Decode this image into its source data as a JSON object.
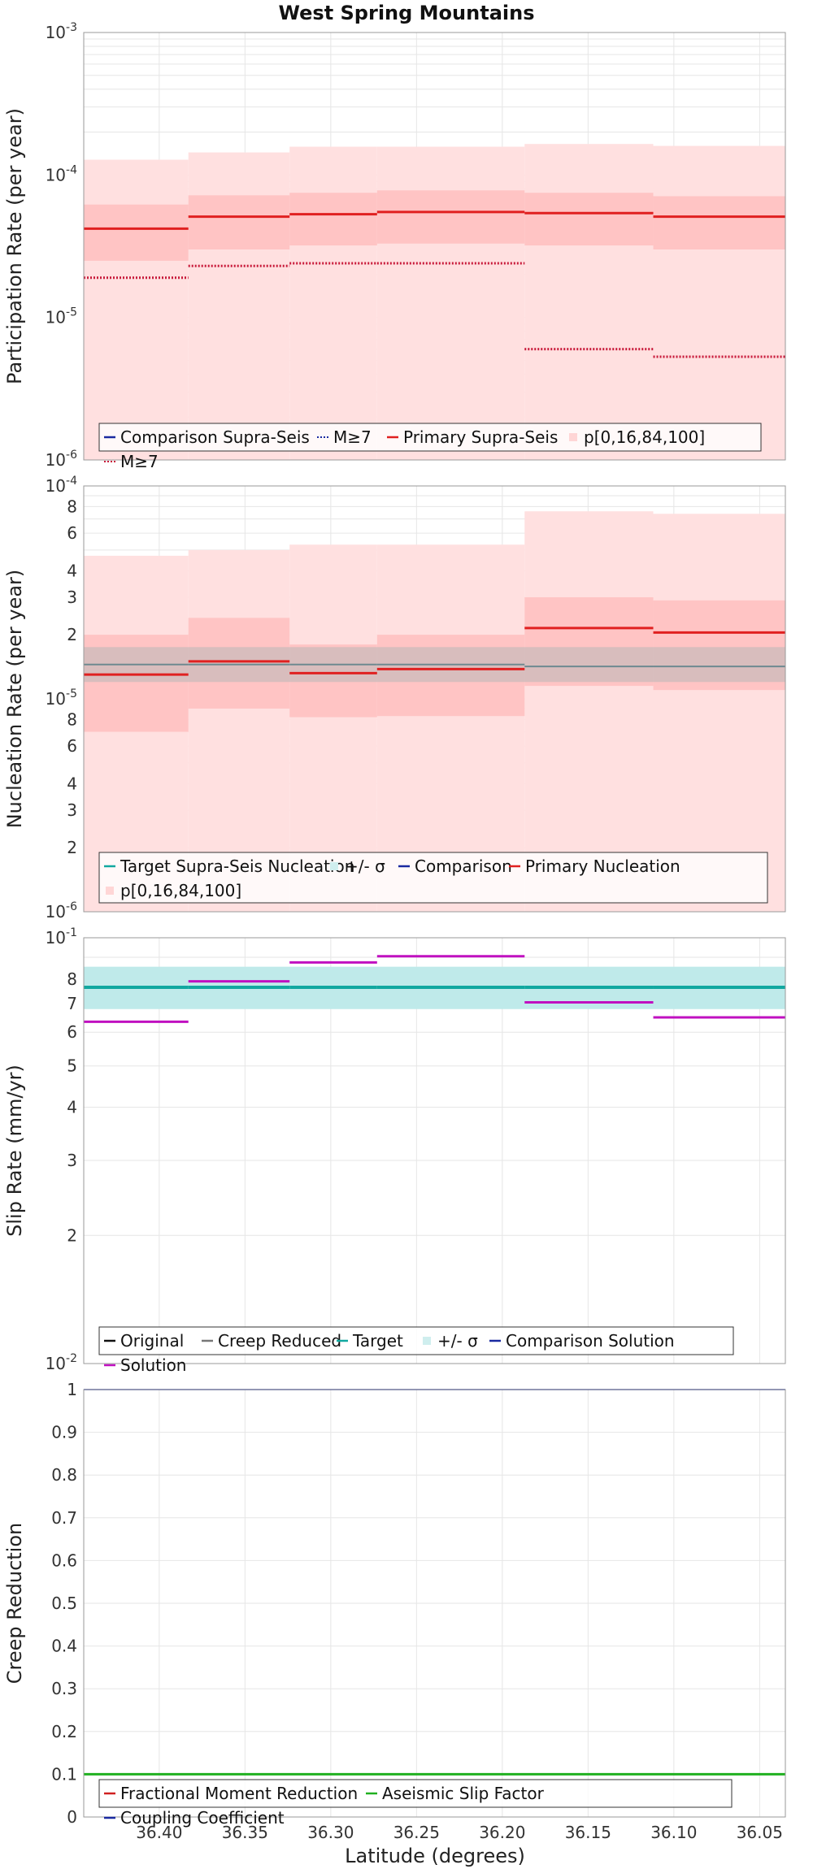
{
  "title": "West Spring Mountains",
  "xlabel": "Latitude (degrees)",
  "colors": {
    "frame": "#9a9a9a",
    "grid": "#e6e6e6",
    "band_outer": "#ffe0e0",
    "band_inner": "#ffc4c4",
    "primary": "#e02020",
    "dotted": "#c81a3a",
    "target": "#11a8a0",
    "target_band": "#bfeaea",
    "gray_band": "#b8b8b8",
    "gray_line": "#6e8a90",
    "solution": "#c010c0",
    "comparison": "#1a2aa0",
    "aseismic": "#20b020",
    "fractional": "#d02020"
  },
  "chart_data": [
    {
      "type": "line",
      "ylabel": "Participation Rate (per year)",
      "yscale": "log",
      "ylim": [
        1e-06,
        0.001
      ],
      "xlim": [
        36.444,
        36.035
      ],
      "x_ticks": [
        36.4,
        36.35,
        36.3,
        36.25,
        36.2,
        36.15,
        36.1,
        36.05
      ],
      "y_ticks": [
        {
          "base": "10",
          "exp": "-6",
          "value": 1e-06
        },
        {
          "base": "10",
          "exp": "-5",
          "value": 1e-05
        },
        {
          "base": "10",
          "exp": "-4",
          "value": 0.0001
        },
        {
          "base": "10",
          "exp": "-3",
          "value": 0.001
        }
      ],
      "x_bins": [
        [
          36.444,
          36.383
        ],
        [
          36.383,
          36.324
        ],
        [
          36.324,
          36.273
        ],
        [
          36.273,
          36.187
        ],
        [
          36.187,
          36.112
        ],
        [
          36.112,
          36.035
        ]
      ],
      "bands": [
        {
          "name": "p[0,16,84,100] outer",
          "lower": [
            1e-06,
            1e-06,
            1e-06,
            1e-06,
            1e-06,
            1e-06
          ],
          "upper": [
            0.000128,
            0.000144,
            0.000158,
            0.000158,
            0.000165,
            0.00016
          ]
        },
        {
          "name": "p[0,16,84,100] inner",
          "lower": [
            2.5e-05,
            3e-05,
            3.2e-05,
            3.3e-05,
            3.2e-05,
            3e-05
          ],
          "upper": [
            6.2e-05,
            7.2e-05,
            7.5e-05,
            7.8e-05,
            7.5e-05,
            7.1e-05
          ]
        }
      ],
      "series": [
        {
          "name": "Primary Supra-Seis",
          "values": [
            4.2e-05,
            5.1e-05,
            5.3e-05,
            5.5e-05,
            5.4e-05,
            5.1e-05
          ]
        },
        {
          "name": "M≥7",
          "values": [
            1.9e-05,
            2.3e-05,
            2.4e-05,
            2.4e-05,
            6e-06,
            5.3e-06
          ]
        }
      ],
      "legend": {
        "position": "bottom",
        "items": [
          {
            "label": "Comparison Supra-Seis",
            "style": "line",
            "color": "#1a2aa0"
          },
          {
            "label": "M≥7",
            "style": "dotted",
            "color": "#1a2aa0"
          },
          {
            "label": "Primary Supra-Seis",
            "style": "line",
            "color": "#e02020"
          },
          {
            "label": "p[0,16,84,100]",
            "style": "box",
            "color": "#ffd6d6"
          },
          {
            "label": "M≥7",
            "style": "dotted",
            "color": "#c81a3a"
          }
        ]
      }
    },
    {
      "type": "line",
      "ylabel": "Nucleation Rate (per year)",
      "yscale": "log",
      "ylim": [
        1e-06,
        0.0001
      ],
      "xlim": [
        36.444,
        36.035
      ],
      "y_ticks": [
        {
          "base": "10",
          "exp": "-6",
          "value": 1e-06
        },
        {
          "base": "2",
          "value": 2e-06
        },
        {
          "base": "3",
          "value": 3e-06
        },
        {
          "base": "4",
          "value": 4e-06
        },
        {
          "base": "6",
          "value": 6e-06
        },
        {
          "base": "8",
          "value": 8e-06
        },
        {
          "base": "10",
          "exp": "-5",
          "value": 1e-05
        },
        {
          "base": "2",
          "value": 2e-05
        },
        {
          "base": "3",
          "value": 3e-05
        },
        {
          "base": "4",
          "value": 4e-05
        },
        {
          "base": "6",
          "value": 6e-05
        },
        {
          "base": "8",
          "value": 8e-05
        },
        {
          "base": "10",
          "exp": "-4",
          "value": 0.0001
        }
      ],
      "x_bins": [
        [
          36.444,
          36.383
        ],
        [
          36.383,
          36.324
        ],
        [
          36.324,
          36.273
        ],
        [
          36.273,
          36.187
        ],
        [
          36.187,
          36.112
        ],
        [
          36.112,
          36.035
        ]
      ],
      "bands": [
        {
          "name": "p[0,16,84,100] outer",
          "lower": [
            1e-06,
            1e-06,
            1e-06,
            1e-06,
            1e-06,
            1e-06
          ],
          "upper": [
            4.7e-05,
            5e-05,
            5.3e-05,
            5.3e-05,
            7.6e-05,
            7.4e-05
          ]
        },
        {
          "name": "p[0,16,84,100] inner",
          "lower": [
            7e-06,
            9e-06,
            8.2e-06,
            8.3e-06,
            1.15e-05,
            1.1e-05
          ],
          "upper": [
            2e-05,
            2.4e-05,
            1.8e-05,
            2e-05,
            3e-05,
            2.9e-05
          ]
        }
      ],
      "target_band": {
        "lower": 1.2e-05,
        "upper": 1.75e-05
      },
      "target_value": 1.45e-05,
      "series": [
        {
          "name": "Primary Nucleation",
          "values": [
            1.3e-05,
            1.5e-05,
            1.32e-05,
            1.38e-05,
            2.15e-05,
            2.05e-05
          ]
        },
        {
          "name": "Target Supra-Seis Nucleation",
          "values": [
            1.45e-05,
            1.45e-05,
            1.45e-05,
            1.45e-05,
            1.42e-05,
            1.42e-05
          ]
        }
      ],
      "legend": {
        "position": "bottom",
        "items": [
          {
            "label": "Target Supra-Seis Nucleation",
            "style": "line",
            "color": "#11a8a0"
          },
          {
            "label": "+/- σ",
            "style": "box",
            "color": "#cfeeee"
          },
          {
            "label": "Comparison",
            "style": "line",
            "color": "#1a2aa0"
          },
          {
            "label": "Primary Nucleation",
            "style": "line",
            "color": "#e02020"
          },
          {
            "label": "p[0,16,84,100]",
            "style": "box",
            "color": "#ffd6d6"
          }
        ]
      }
    },
    {
      "type": "line",
      "ylabel": "Slip Rate (mm/yr)",
      "yscale": "log",
      "ylim": [
        0.01,
        0.1
      ],
      "xlim": [
        36.444,
        36.035
      ],
      "y_ticks": [
        {
          "base": "10",
          "exp": "-2",
          "value": 0.01
        },
        {
          "base": "2",
          "value": 0.02
        },
        {
          "base": "3",
          "value": 0.03
        },
        {
          "base": "4",
          "value": 0.04
        },
        {
          "base": "5",
          "value": 0.05
        },
        {
          "base": "6",
          "value": 0.06
        },
        {
          "base": "7",
          "value": 0.07
        },
        {
          "base": "8",
          "value": 0.08
        },
        {
          "base": "10",
          "exp": "-1",
          "value": 0.1
        }
      ],
      "x_bins": [
        [
          36.444,
          36.383
        ],
        [
          36.383,
          36.324
        ],
        [
          36.324,
          36.273
        ],
        [
          36.273,
          36.187
        ],
        [
          36.187,
          36.112
        ],
        [
          36.112,
          36.035
        ]
      ],
      "target_band": {
        "lower": 0.068,
        "upper": 0.0855
      },
      "target_value": 0.0765,
      "series": [
        {
          "name": "Solution",
          "values": [
            0.0635,
            0.079,
            0.0875,
            0.0905,
            0.0705,
            0.065
          ]
        },
        {
          "name": "Target",
          "values": [
            0.0765,
            0.0765,
            0.0765,
            0.0765,
            0.0765,
            0.0765
          ]
        }
      ],
      "legend": {
        "position": "bottom",
        "items": [
          {
            "label": "Original",
            "style": "line",
            "color": "#111111"
          },
          {
            "label": "Creep Reduced",
            "style": "line",
            "color": "#777777"
          },
          {
            "label": "Target",
            "style": "line",
            "color": "#11a8a0"
          },
          {
            "label": "+/- σ",
            "style": "box",
            "color": "#cfeeee"
          },
          {
            "label": "Comparison Solution",
            "style": "line",
            "color": "#1a2aa0"
          },
          {
            "label": "Solution",
            "style": "line",
            "color": "#c010c0"
          }
        ]
      }
    },
    {
      "type": "line",
      "ylabel": "Creep Reduction",
      "yscale": "linear",
      "ylim": [
        0,
        1
      ],
      "xlim": [
        36.444,
        36.035
      ],
      "x_ticks": [
        36.4,
        36.35,
        36.3,
        36.25,
        36.2,
        36.15,
        36.1,
        36.05
      ],
      "x_tick_labels": [
        "36.40",
        "36.35",
        "36.30",
        "36.25",
        "36.20",
        "36.15",
        "36.10",
        "36.05"
      ],
      "y_ticks": [
        {
          "base": "0",
          "value": 0
        },
        {
          "base": "0.1",
          "value": 0.1
        },
        {
          "base": "0.2",
          "value": 0.2
        },
        {
          "base": "0.3",
          "value": 0.3
        },
        {
          "base": "0.4",
          "value": 0.4
        },
        {
          "base": "0.5",
          "value": 0.5
        },
        {
          "base": "0.6",
          "value": 0.6
        },
        {
          "base": "0.7",
          "value": 0.7
        },
        {
          "base": "0.8",
          "value": 0.8
        },
        {
          "base": "0.9",
          "value": 0.9
        },
        {
          "base": "1",
          "value": 1
        }
      ],
      "series": [
        {
          "name": "Coupling Coefficient",
          "values": [
            1,
            1
          ]
        },
        {
          "name": "Aseismic Slip Factor",
          "values": [
            0.1,
            0.1
          ]
        }
      ],
      "legend": {
        "position": "bottom",
        "items": [
          {
            "label": "Fractional Moment Reduction",
            "style": "line",
            "color": "#d02020"
          },
          {
            "label": "Aseismic Slip Factor",
            "style": "line",
            "color": "#20b020"
          },
          {
            "label": "Coupling Coefficient",
            "style": "line",
            "color": "#1a2aa0"
          }
        ]
      }
    }
  ]
}
